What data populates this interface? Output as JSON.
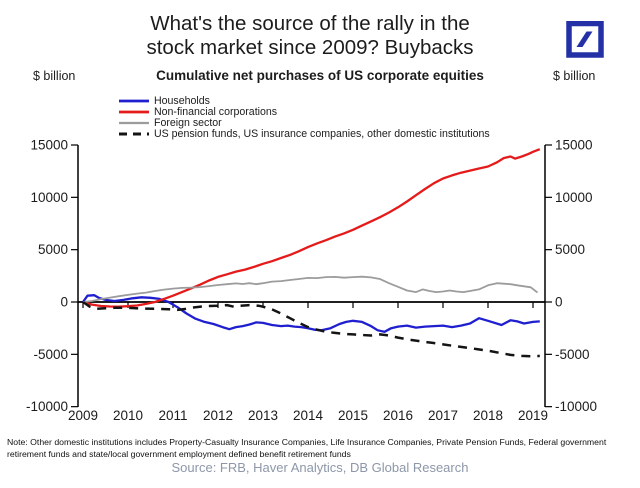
{
  "header": {
    "title_line1": "What's the source of the rally in the",
    "title_line2": "stock market since 2009? Buybacks",
    "logo": "deutsche-bank-logo",
    "logo_color": "#2430a6"
  },
  "subtitle": {
    "left_unit": "$ billion",
    "center": "Cumulative net purchases of US corporate equities",
    "right_unit": "$ billion"
  },
  "footer": {
    "note_line1": "Note: Other domestic institutions includes Property-Casualty Insurance Companies, Life Insurance Companies, Private Pension Funds, Federal government",
    "note_line2": "retirement funds and state/local government employment defined benefit retirement funds",
    "source": "Source: FRB, Haver Analytics, DB Global Research",
    "source_color": "#8d97a9"
  },
  "chart_data": {
    "type": "line",
    "title": "Cumulative net purchases of US corporate equities",
    "ylabel": "$ billion",
    "xlabel": "",
    "xlim": [
      2009,
      2019.3
    ],
    "ylim": [
      -10000,
      15000
    ],
    "grid": false,
    "legend_position": "top-left",
    "x_ticks": [
      2009,
      2010,
      2011,
      2012,
      2013,
      2014,
      2015,
      2016,
      2017,
      2018,
      2019
    ],
    "y_ticks": [
      15000,
      10000,
      5000,
      0,
      -5000,
      -10000
    ],
    "series": [
      {
        "name": "Households",
        "color": "#1f1fd0",
        "dash": null,
        "width": 2.3,
        "points": [
          [
            2009,
            0
          ],
          [
            2009.1,
            600
          ],
          [
            2009.25,
            650
          ],
          [
            2009.35,
            400
          ],
          [
            2009.5,
            200
          ],
          [
            2009.7,
            100
          ],
          [
            2009.9,
            200
          ],
          [
            2010.1,
            350
          ],
          [
            2010.3,
            450
          ],
          [
            2010.5,
            400
          ],
          [
            2010.7,
            300
          ],
          [
            2010.9,
            0
          ],
          [
            2011.1,
            -500
          ],
          [
            2011.3,
            -1100
          ],
          [
            2011.5,
            -1600
          ],
          [
            2011.7,
            -1900
          ],
          [
            2011.9,
            -2100
          ],
          [
            2012.1,
            -2400
          ],
          [
            2012.25,
            -2600
          ],
          [
            2012.4,
            -2400
          ],
          [
            2012.55,
            -2300
          ],
          [
            2012.7,
            -2150
          ],
          [
            2012.85,
            -1950
          ],
          [
            2013,
            -2000
          ],
          [
            2013.2,
            -2200
          ],
          [
            2013.4,
            -2300
          ],
          [
            2013.55,
            -2250
          ],
          [
            2013.7,
            -2350
          ],
          [
            2013.85,
            -2400
          ],
          [
            2014,
            -2500
          ],
          [
            2014.15,
            -2650
          ],
          [
            2014.3,
            -2700
          ],
          [
            2014.5,
            -2500
          ],
          [
            2014.7,
            -2100
          ],
          [
            2014.85,
            -1900
          ],
          [
            2015,
            -1800
          ],
          [
            2015.2,
            -1900
          ],
          [
            2015.4,
            -2300
          ],
          [
            2015.55,
            -2700
          ],
          [
            2015.7,
            -2850
          ],
          [
            2015.85,
            -2500
          ],
          [
            2016,
            -2350
          ],
          [
            2016.2,
            -2250
          ],
          [
            2016.4,
            -2450
          ],
          [
            2016.6,
            -2350
          ],
          [
            2016.8,
            -2300
          ],
          [
            2017,
            -2250
          ],
          [
            2017.2,
            -2400
          ],
          [
            2017.4,
            -2250
          ],
          [
            2017.6,
            -2050
          ],
          [
            2017.8,
            -1550
          ],
          [
            2018,
            -1800
          ],
          [
            2018.3,
            -2200
          ],
          [
            2018.5,
            -1750
          ],
          [
            2018.65,
            -1850
          ],
          [
            2018.8,
            -2050
          ],
          [
            2019,
            -1900
          ],
          [
            2019.15,
            -1850
          ]
        ]
      },
      {
        "name": "Non-financial corporations",
        "color": "#e51b1b",
        "dash": null,
        "width": 2.3,
        "points": [
          [
            2009,
            0
          ],
          [
            2009.2,
            -250
          ],
          [
            2009.4,
            -380
          ],
          [
            2009.6,
            -430
          ],
          [
            2009.8,
            -440
          ],
          [
            2010,
            -400
          ],
          [
            2010.2,
            -330
          ],
          [
            2010.4,
            -180
          ],
          [
            2010.6,
            0
          ],
          [
            2010.8,
            300
          ],
          [
            2011,
            600
          ],
          [
            2011.2,
            950
          ],
          [
            2011.4,
            1300
          ],
          [
            2011.6,
            1650
          ],
          [
            2011.8,
            2050
          ],
          [
            2012,
            2400
          ],
          [
            2012.2,
            2650
          ],
          [
            2012.4,
            2900
          ],
          [
            2012.6,
            3100
          ],
          [
            2012.8,
            3350
          ],
          [
            2013,
            3650
          ],
          [
            2013.2,
            3900
          ],
          [
            2013.4,
            4200
          ],
          [
            2013.6,
            4500
          ],
          [
            2013.8,
            4850
          ],
          [
            2014,
            5250
          ],
          [
            2014.2,
            5600
          ],
          [
            2014.4,
            5900
          ],
          [
            2014.6,
            6250
          ],
          [
            2014.8,
            6550
          ],
          [
            2015,
            6900
          ],
          [
            2015.2,
            7300
          ],
          [
            2015.4,
            7700
          ],
          [
            2015.6,
            8100
          ],
          [
            2015.8,
            8550
          ],
          [
            2016,
            9050
          ],
          [
            2016.2,
            9600
          ],
          [
            2016.4,
            10200
          ],
          [
            2016.6,
            10800
          ],
          [
            2016.8,
            11350
          ],
          [
            2017,
            11800
          ],
          [
            2017.2,
            12100
          ],
          [
            2017.4,
            12350
          ],
          [
            2017.6,
            12550
          ],
          [
            2017.8,
            12750
          ],
          [
            2018,
            12950
          ],
          [
            2018.2,
            13350
          ],
          [
            2018.35,
            13750
          ],
          [
            2018.5,
            13900
          ],
          [
            2018.6,
            13700
          ],
          [
            2018.75,
            13900
          ],
          [
            2018.9,
            14150
          ],
          [
            2019,
            14350
          ],
          [
            2019.15,
            14600
          ]
        ]
      },
      {
        "name": "Foreign sector",
        "color": "#9c9c9c",
        "dash": null,
        "width": 1.8,
        "points": [
          [
            2009,
            0
          ],
          [
            2009.2,
            100
          ],
          [
            2009.4,
            280
          ],
          [
            2009.6,
            420
          ],
          [
            2009.8,
            550
          ],
          [
            2010,
            680
          ],
          [
            2010.2,
            800
          ],
          [
            2010.4,
            900
          ],
          [
            2010.6,
            1050
          ],
          [
            2010.8,
            1180
          ],
          [
            2011,
            1280
          ],
          [
            2011.2,
            1350
          ],
          [
            2011.4,
            1380
          ],
          [
            2011.6,
            1420
          ],
          [
            2011.8,
            1520
          ],
          [
            2012,
            1620
          ],
          [
            2012.2,
            1700
          ],
          [
            2012.4,
            1780
          ],
          [
            2012.55,
            1720
          ],
          [
            2012.7,
            1800
          ],
          [
            2012.85,
            1700
          ],
          [
            2013,
            1800
          ],
          [
            2013.2,
            1950
          ],
          [
            2013.4,
            2000
          ],
          [
            2013.6,
            2100
          ],
          [
            2013.8,
            2200
          ],
          [
            2014,
            2300
          ],
          [
            2014.2,
            2280
          ],
          [
            2014.4,
            2380
          ],
          [
            2014.6,
            2400
          ],
          [
            2014.8,
            2320
          ],
          [
            2015,
            2380
          ],
          [
            2015.2,
            2420
          ],
          [
            2015.4,
            2350
          ],
          [
            2015.6,
            2200
          ],
          [
            2015.8,
            1800
          ],
          [
            2016,
            1450
          ],
          [
            2016.2,
            1100
          ],
          [
            2016.4,
            950
          ],
          [
            2016.55,
            1200
          ],
          [
            2016.7,
            1050
          ],
          [
            2016.85,
            950
          ],
          [
            2017,
            1000
          ],
          [
            2017.15,
            1100
          ],
          [
            2017.3,
            1000
          ],
          [
            2017.45,
            950
          ],
          [
            2017.6,
            1050
          ],
          [
            2017.8,
            1200
          ],
          [
            2018,
            1600
          ],
          [
            2018.2,
            1800
          ],
          [
            2018.35,
            1750
          ],
          [
            2018.5,
            1700
          ],
          [
            2018.65,
            1600
          ],
          [
            2018.8,
            1500
          ],
          [
            2018.95,
            1400
          ],
          [
            2019.1,
            900
          ]
        ]
      },
      {
        "name": "US pension funds, US insurance companies, other domestic institutions",
        "color": "#141414",
        "dash": "9 7",
        "width": 2.5,
        "points": [
          [
            2009,
            0
          ],
          [
            2009.15,
            -450
          ],
          [
            2009.3,
            -650
          ],
          [
            2009.5,
            -600
          ],
          [
            2009.7,
            -550
          ],
          [
            2010,
            -550
          ],
          [
            2010.3,
            -620
          ],
          [
            2010.6,
            -650
          ],
          [
            2010.9,
            -700
          ],
          [
            2011.1,
            -750
          ],
          [
            2011.3,
            -650
          ],
          [
            2011.5,
            -500
          ],
          [
            2011.7,
            -400
          ],
          [
            2012,
            -350
          ],
          [
            2012.2,
            -300
          ],
          [
            2012.35,
            -450
          ],
          [
            2012.5,
            -350
          ],
          [
            2012.7,
            -300
          ],
          [
            2012.9,
            -350
          ],
          [
            2013,
            -450
          ],
          [
            2013.2,
            -700
          ],
          [
            2013.4,
            -1100
          ],
          [
            2013.6,
            -1550
          ],
          [
            2013.8,
            -2000
          ],
          [
            2014,
            -2400
          ],
          [
            2014.2,
            -2650
          ],
          [
            2014.4,
            -2850
          ],
          [
            2014.6,
            -2950
          ],
          [
            2014.8,
            -3050
          ],
          [
            2015,
            -3100
          ],
          [
            2015.2,
            -3150
          ],
          [
            2015.4,
            -3200
          ],
          [
            2015.6,
            -3100
          ],
          [
            2015.8,
            -3200
          ],
          [
            2016,
            -3400
          ],
          [
            2016.25,
            -3600
          ],
          [
            2016.5,
            -3750
          ],
          [
            2016.75,
            -3900
          ],
          [
            2017,
            -4050
          ],
          [
            2017.25,
            -4200
          ],
          [
            2017.5,
            -4350
          ],
          [
            2017.75,
            -4500
          ],
          [
            2018,
            -4650
          ],
          [
            2018.25,
            -4850
          ],
          [
            2018.5,
            -5050
          ],
          [
            2018.75,
            -5150
          ],
          [
            2019,
            -5200
          ],
          [
            2019.15,
            -5150
          ]
        ]
      }
    ]
  }
}
